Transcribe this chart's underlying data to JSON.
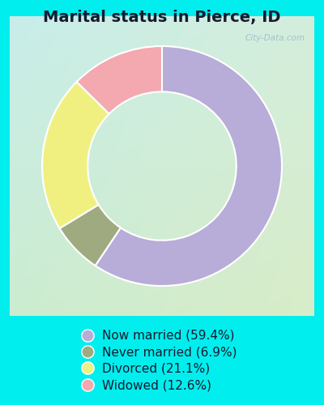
{
  "title": "Marital status in Pierce, ID",
  "slices": [
    59.4,
    6.9,
    21.1,
    12.6
  ],
  "labels": [
    "Now married (59.4%)",
    "Never married (6.9%)",
    "Divorced (21.1%)",
    "Widowed (12.6%)"
  ],
  "colors": [
    "#b8acd8",
    "#a0aa80",
    "#f0f080",
    "#f4a8b0"
  ],
  "outer_bg": "#00eeee",
  "chart_bg_tl": "#c8eeea",
  "chart_bg_br": "#d8ecc8",
  "title_fontsize": 14,
  "legend_fontsize": 11,
  "watermark": "City-Data.com",
  "donut_width": 0.38,
  "start_angle": 90,
  "title_color": "#1a1a2e",
  "legend_text_color": "#1a1a2e"
}
